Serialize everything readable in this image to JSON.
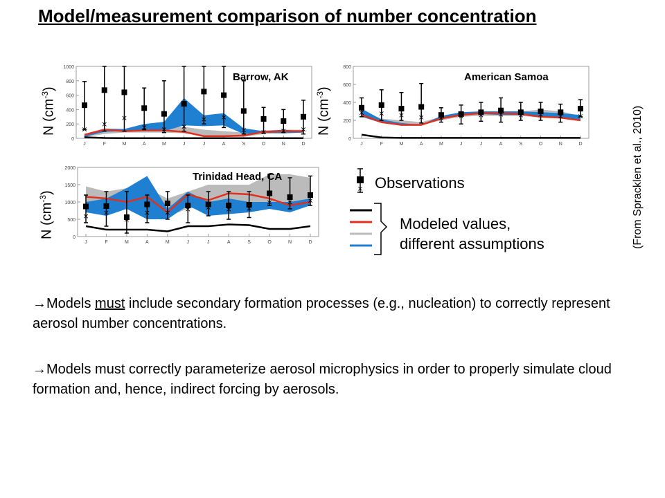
{
  "title": "Model/measurement comparison of number concentration",
  "citation": "(From Spracklen et al., 2010)",
  "y_axis_label": {
    "prefix": "N (cm",
    "sup": "-3",
    "suffix": ")"
  },
  "legend": {
    "observations": "Observations",
    "modeled_line1": "Modeled values,",
    "modeled_line2": "different assumptions",
    "line_colors": [
      "#000000",
      "#e0301e",
      "#bbbbbb",
      "#1f7fd0"
    ]
  },
  "bullets": [
    {
      "arrow": "→",
      "before": "Models ",
      "underlined": "must",
      "after": " include secondary formation processes (e.g., nucleation) to correctly represent aerosol number concentrations."
    },
    {
      "arrow": "→",
      "before": "Models must correctly parameterize aerosol microphysics in order to properly simulate cloud formation and, hence, indirect forcing by aerosols.",
      "underlined": "",
      "after": ""
    }
  ],
  "colors": {
    "obs": "#000000",
    "blue_band": "#1f7fd0",
    "gray_band": "#bbbbbb",
    "red_line": "#e0301e",
    "black_line": "#000000"
  },
  "chart_data": [
    {
      "type": "line",
      "title": "Barrow, AK",
      "categories": [
        "J",
        "F",
        "M",
        "A",
        "M",
        "J",
        "J",
        "A",
        "S",
        "O",
        "N",
        "D"
      ],
      "ylim": [
        0,
        1000
      ],
      "yticks": [
        0,
        200,
        400,
        600,
        800,
        1000
      ],
      "obs_mean": [
        460,
        670,
        640,
        420,
        340,
        480,
        650,
        600,
        380,
        270,
        240,
        300
      ],
      "obs_err_low": [
        120,
        100,
        100,
        120,
        80,
        100,
        200,
        150,
        60,
        70,
        80,
        60
      ],
      "obs_err_high": [
        790,
        1000,
        1000,
        700,
        800,
        1000,
        1000,
        1000,
        800,
        430,
        400,
        530
      ],
      "obs_x": [
        130,
        200,
        290,
        160,
        130,
        170,
        270,
        300,
        120,
        90,
        110,
        130
      ],
      "blue_low": [
        20,
        90,
        100,
        100,
        100,
        180,
        170,
        180,
        60,
        80,
        70,
        80
      ],
      "blue_high": [
        60,
        130,
        130,
        200,
        230,
        560,
        320,
        350,
        140,
        100,
        120,
        100
      ],
      "gray_low": [
        20,
        60,
        80,
        80,
        80,
        70,
        30,
        20,
        20,
        60,
        70,
        80
      ],
      "gray_high": [
        60,
        140,
        130,
        140,
        150,
        160,
        120,
        100,
        80,
        110,
        120,
        120
      ],
      "red": [
        50,
        120,
        100,
        110,
        110,
        90,
        30,
        30,
        40,
        90,
        100,
        100
      ],
      "black": [
        15,
        5,
        3,
        3,
        3,
        3,
        3,
        3,
        3,
        3,
        3,
        3
      ]
    },
    {
      "type": "line",
      "title": "American Samoa",
      "categories": [
        "J",
        "F",
        "M",
        "A",
        "M",
        "J",
        "J",
        "A",
        "S",
        "O",
        "N",
        "D"
      ],
      "ylim": [
        0,
        800
      ],
      "yticks": [
        0,
        200,
        400,
        600,
        800
      ],
      "obs_mean": [
        340,
        370,
        330,
        350,
        260,
        270,
        290,
        310,
        290,
        300,
        290,
        330
      ],
      "obs_err_low": [
        240,
        200,
        200,
        170,
        180,
        160,
        190,
        180,
        200,
        200,
        180,
        240
      ],
      "obs_err_high": [
        450,
        540,
        510,
        610,
        340,
        370,
        400,
        450,
        400,
        400,
        380,
        430
      ],
      "obs_x": [
        290,
        280,
        260,
        240,
        230,
        250,
        260,
        270,
        260,
        270,
        250,
        250
      ],
      "blue_low": [
        240,
        170,
        140,
        140,
        220,
        260,
        270,
        260,
        260,
        240,
        230,
        200
      ],
      "blue_high": [
        330,
        210,
        170,
        150,
        250,
        290,
        300,
        300,
        300,
        290,
        280,
        260
      ],
      "gray_low": [
        250,
        180,
        150,
        150,
        200,
        240,
        250,
        250,
        250,
        230,
        230,
        200
      ],
      "gray_high": [
        300,
        220,
        200,
        180,
        240,
        270,
        290,
        290,
        300,
        320,
        300,
        250
      ],
      "red": [
        260,
        180,
        150,
        150,
        220,
        260,
        280,
        280,
        270,
        240,
        230,
        200
      ],
      "black": [
        40,
        10,
        5,
        5,
        5,
        5,
        5,
        5,
        5,
        5,
        5,
        5
      ]
    },
    {
      "type": "line",
      "title": "Trinidad Head, CA",
      "categories": [
        "J",
        "F",
        "M",
        "A",
        "M",
        "J",
        "J",
        "A",
        "S",
        "O",
        "N",
        "D"
      ],
      "ylim": [
        0,
        2000
      ],
      "yticks": [
        0,
        500,
        1000,
        1500,
        2000
      ],
      "obs_mean": [
        870,
        880,
        560,
        930,
        960,
        900,
        930,
        900,
        920,
        1250,
        1140,
        1200
      ],
      "obs_err_low": [
        400,
        300,
        100,
        400,
        500,
        400,
        600,
        500,
        550,
        900,
        800,
        900
      ],
      "obs_err_high": [
        1200,
        1300,
        1300,
        1200,
        1300,
        1200,
        1300,
        1300,
        1300,
        1800,
        1700,
        1750
      ],
      "obs_x": [
        600,
        700,
        500,
        700,
        700,
        800,
        850,
        800,
        820,
        1000,
        1000,
        1050
      ],
      "blue_low": [
        700,
        600,
        800,
        500,
        500,
        900,
        600,
        650,
        700,
        800,
        700,
        900
      ],
      "blue_high": [
        1000,
        1100,
        1400,
        1750,
        800,
        1300,
        1000,
        1100,
        1000,
        1000,
        1000,
        1100
      ],
      "gray_low": [
        800,
        700,
        900,
        800,
        600,
        800,
        900,
        900,
        900,
        900,
        900,
        900
      ],
      "gray_high": [
        1450,
        1300,
        1400,
        1400,
        1100,
        1300,
        1500,
        1500,
        1500,
        1800,
        1800,
        1700
      ],
      "red": [
        1150,
        1100,
        1000,
        1150,
        700,
        1220,
        1050,
        1250,
        1220,
        1100,
        900,
        1000
      ],
      "black": [
        300,
        200,
        200,
        200,
        150,
        300,
        300,
        350,
        330,
        220,
        220,
        300
      ]
    }
  ]
}
